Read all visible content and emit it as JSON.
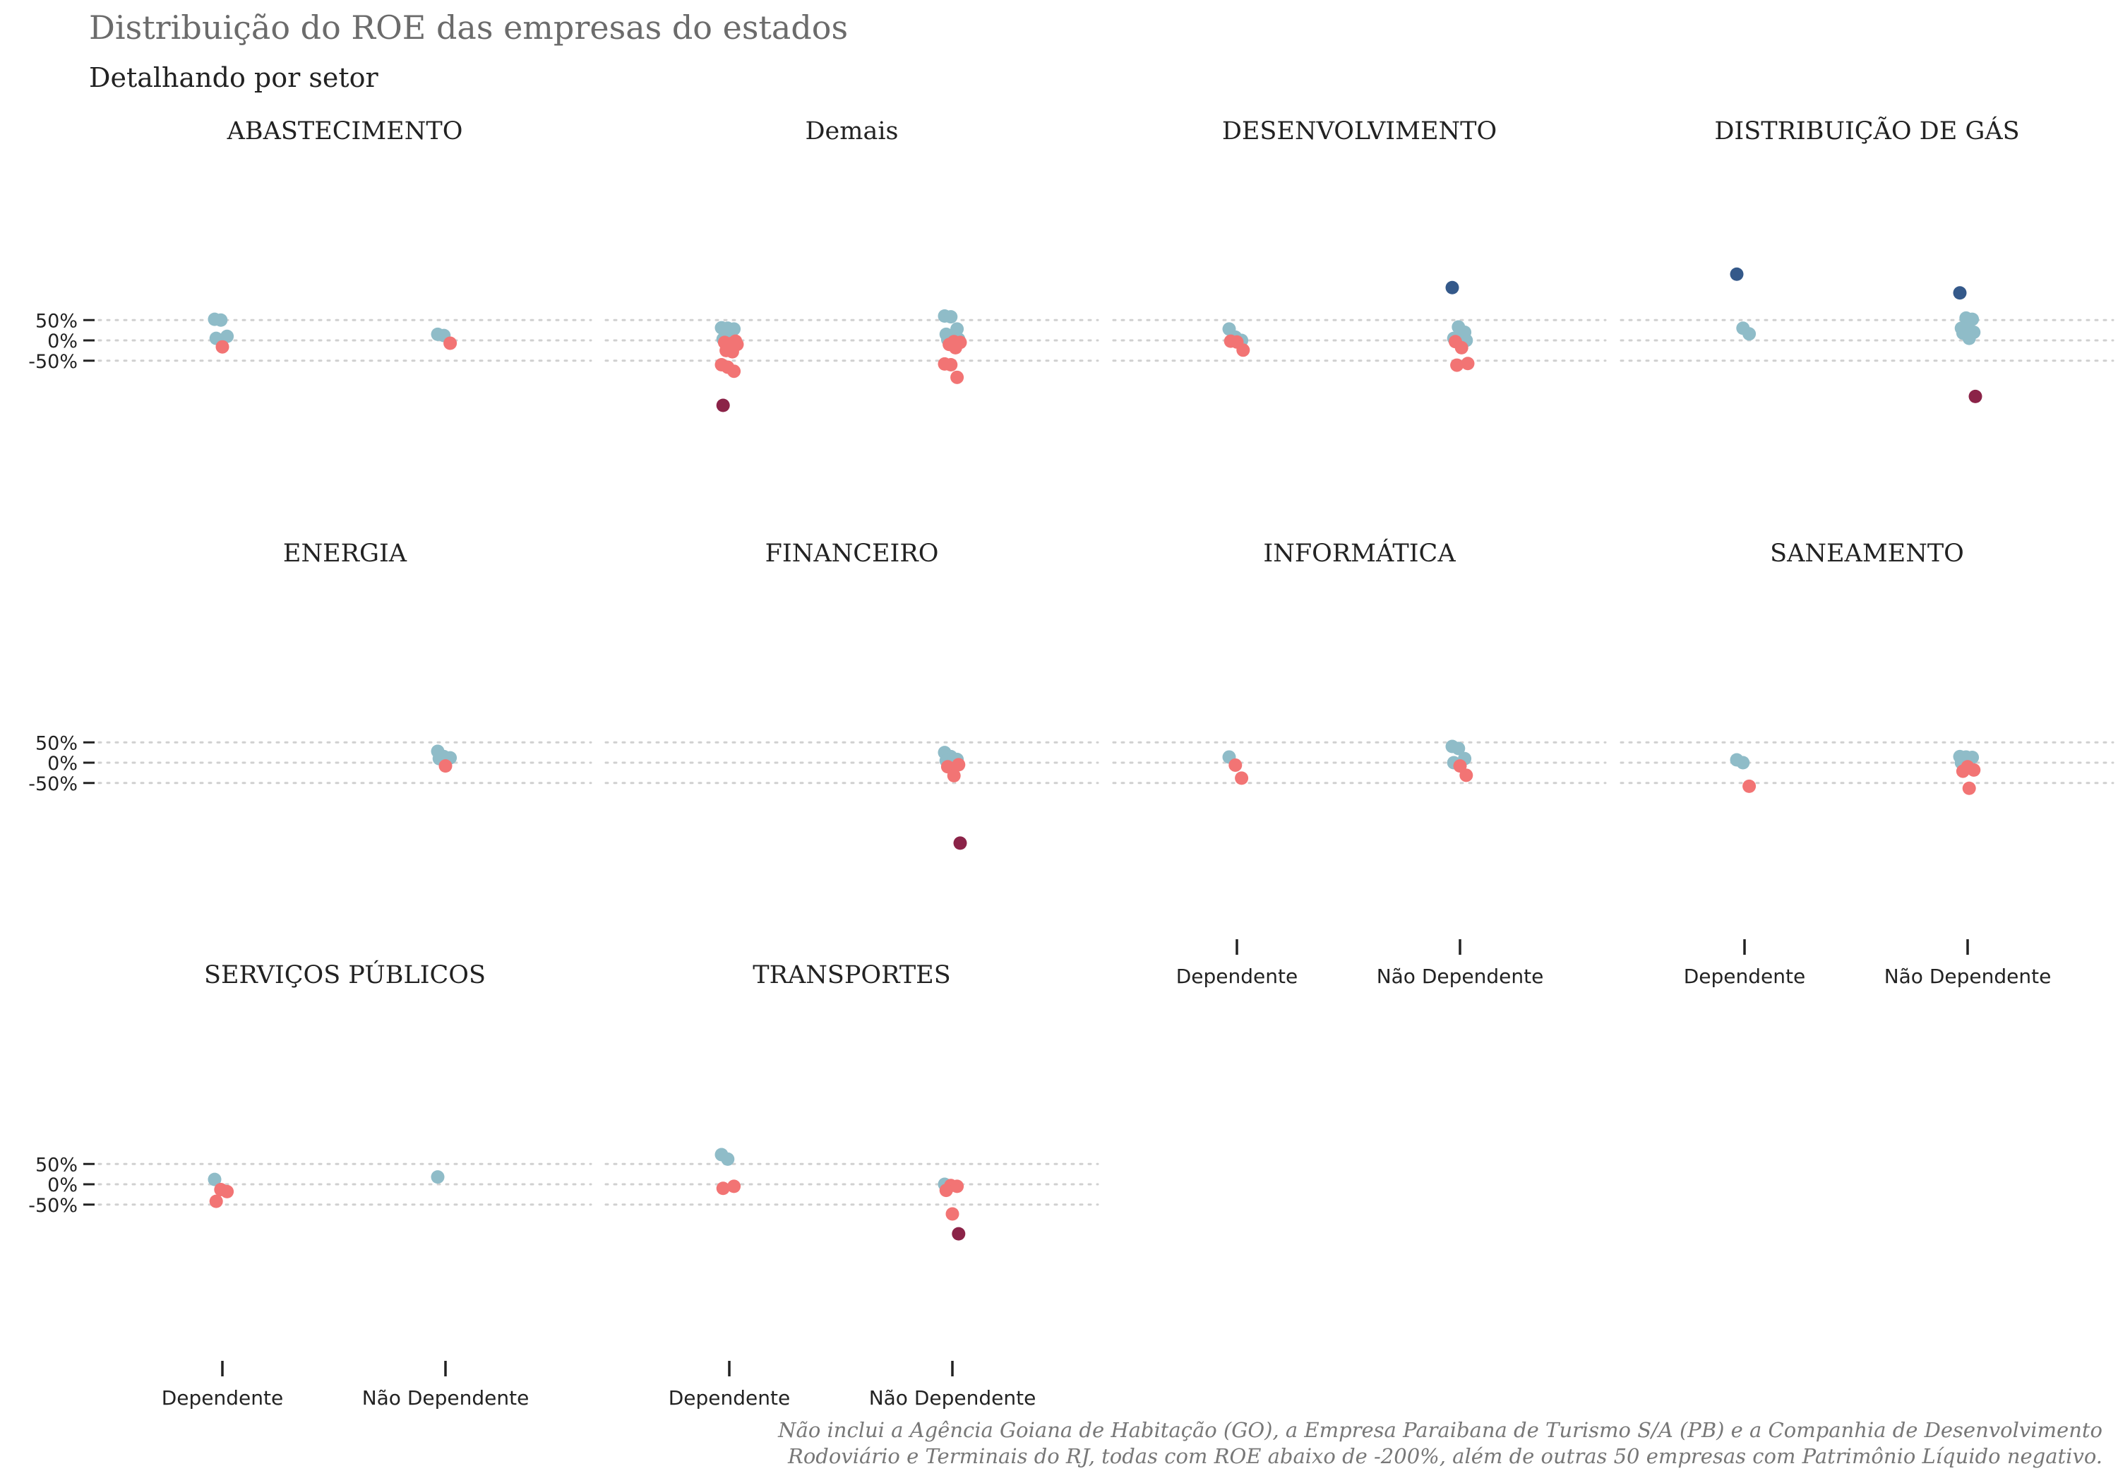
{
  "title": "Distribuição do ROE das empresas do estados",
  "subtitle": "Detalhando por setor",
  "caption_lines": [
    "Não inclui a Agência Goiana de Habitação (GO), a Empresa Paraibana de Turismo S/A (PB) e a Companhia de Desenvolvimento",
    "Rodoviário e Terminais do RJ, todas com ROE abaixo de -200%, além de outras 50 empresas com Patrimônio Líquido negativo."
  ],
  "colors": {
    "above_100": "#34598a",
    "between_0_100": "#8fbcc8",
    "between_neg100_0": "#f27474",
    "below_neg100": "#8b2348",
    "grid": "#d0d0d0",
    "title": "#6b6b6b",
    "text": "#222222"
  },
  "chart_data": {
    "type": "scatter",
    "facet_by": "setor",
    "categories": [
      "Dependente",
      "Não Dependente"
    ],
    "y_ticks": [
      50,
      0,
      -50
    ],
    "y_tick_labels": [
      "50%",
      "0%",
      "-50%"
    ],
    "grid": "horizontal dotted",
    "panels": [
      {
        "name": "ABASTECIMENTO",
        "dep": [
          52,
          50,
          10,
          5,
          -16
        ],
        "nao": [
          15,
          12,
          -7
        ]
      },
      {
        "name": "Demais",
        "dep": [
          31,
          30,
          28,
          3,
          2,
          -2,
          -5,
          -8,
          -10,
          -25,
          -28,
          -60,
          -66,
          -76,
          -160
        ],
        "nao": [
          60,
          58,
          28,
          15,
          5,
          3,
          2,
          -3,
          -5,
          -10,
          -18,
          -58,
          -60,
          -91
        ]
      },
      {
        "name": "DESENVOLVIMENTO",
        "dep": [
          28,
          8,
          0,
          -2,
          -4,
          -24
        ],
        "nao": [
          130,
          33,
          20,
          5,
          3,
          0,
          -3,
          -18,
          -57,
          -61
        ]
      },
      {
        "name": "DISTRIBUIÇÃO DE GÁS",
        "dep": [
          163,
          30,
          16
        ],
        "nao": [
          117,
          55,
          52,
          30,
          27,
          20,
          18,
          5,
          -138
        ]
      },
      {
        "name": "ENERGIA",
        "dep": [],
        "nao": [
          28,
          15,
          12,
          10,
          -8
        ]
      },
      {
        "name": "FINANCEIRO",
        "dep": [],
        "nao": [
          25,
          15,
          8,
          5,
          3,
          -5,
          -10,
          -32,
          -198
        ]
      },
      {
        "name": "INFORMÁTICA",
        "dep": [
          14,
          -6,
          -38
        ],
        "nao": [
          40,
          35,
          10,
          0,
          -8,
          -31
        ]
      },
      {
        "name": "SANEAMENTO",
        "dep": [
          7,
          0,
          -58
        ],
        "nao": [
          15,
          14,
          13,
          0,
          -10,
          -18,
          -21,
          -63
        ]
      },
      {
        "name": "SERVIÇOS PÚBLICOS",
        "dep": [
          12,
          -13,
          -18,
          -42
        ],
        "nao": [
          18
        ]
      },
      {
        "name": "TRANSPORTES",
        "dep": [
          73,
          62,
          -5,
          -10
        ],
        "nao": [
          0,
          -3,
          -5,
          -15,
          -73,
          -122
        ]
      }
    ]
  }
}
